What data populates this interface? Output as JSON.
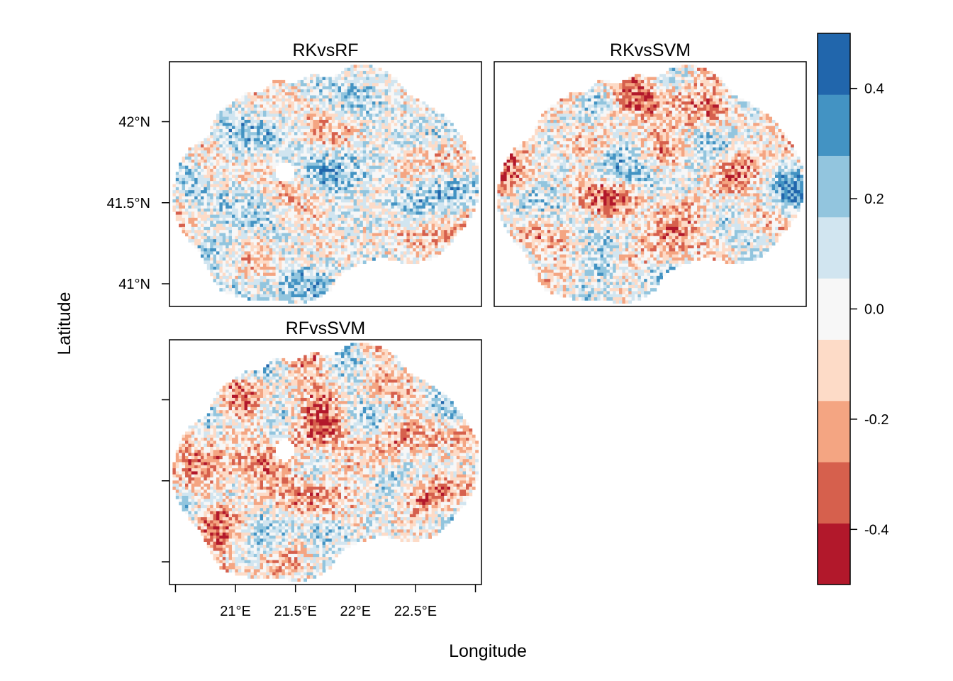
{
  "panels": [
    {
      "title": "RKvsRF",
      "seed": 11
    },
    {
      "title": "RKvsSVM",
      "seed": 29
    },
    {
      "title": "RFvsSVM",
      "seed": 47
    }
  ],
  "axes": {
    "xlabel": "Longitude",
    "ylabel": "Latitude",
    "x_ticks": [
      {
        "value": 20.5,
        "label": ""
      },
      {
        "value": 21.0,
        "label": "21°E"
      },
      {
        "value": 21.5,
        "label": "21.5°E"
      },
      {
        "value": 22.0,
        "label": "22°E"
      },
      {
        "value": 22.5,
        "label": "22.5°E"
      },
      {
        "value": 23.0,
        "label": ""
      }
    ],
    "y_ticks": [
      {
        "value": 41.0,
        "label": "41°N"
      },
      {
        "value": 41.5,
        "label": "41.5°N"
      },
      {
        "value": 42.0,
        "label": "42°N"
      }
    ],
    "xlim": [
      20.45,
      23.05
    ],
    "ylim": [
      40.86,
      42.37
    ]
  },
  "colorbar": {
    "min": -0.5,
    "max": 0.5,
    "colors": [
      "#b2182b",
      "#d6604d",
      "#f4a582",
      "#fddbc7",
      "#f7f7f7",
      "#d1e5f0",
      "#92c5de",
      "#4393c3",
      "#2166ac"
    ],
    "ticks": [
      {
        "value": -0.4,
        "label": "-0.4"
      },
      {
        "value": -0.2,
        "label": "-0.2"
      },
      {
        "value": 0.0,
        "label": "0.0"
      },
      {
        "value": 0.2,
        "label": "0.2"
      },
      {
        "value": 0.4,
        "label": "0.4"
      }
    ]
  }
}
